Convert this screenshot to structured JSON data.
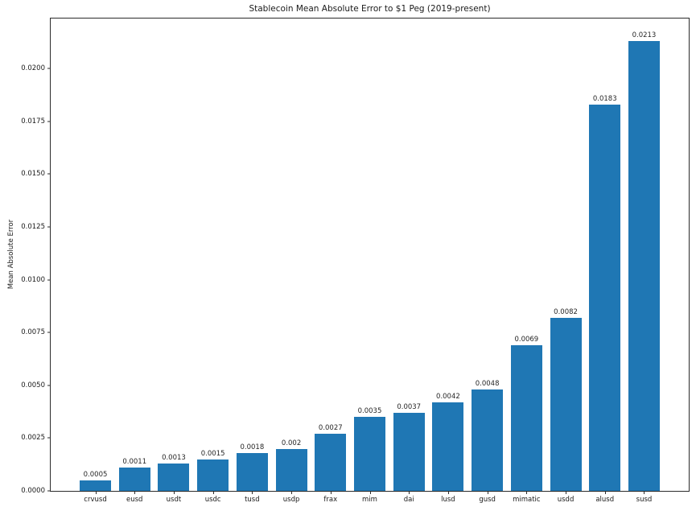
{
  "chart_data": {
    "type": "bar",
    "title": "Stablecoin Mean Absolute Error to $1 Peg (2019-present)",
    "xlabel": "",
    "ylabel": "Mean Absolute Error",
    "categories": [
      "crvusd",
      "eusd",
      "usdt",
      "usdc",
      "tusd",
      "usdp",
      "frax",
      "mim",
      "dai",
      "lusd",
      "gusd",
      "mimatic",
      "usdd",
      "alusd",
      "susd"
    ],
    "values": [
      0.0005,
      0.0011,
      0.0013,
      0.0015,
      0.0018,
      0.002,
      0.0027,
      0.0035,
      0.0037,
      0.0042,
      0.0048,
      0.0069,
      0.0082,
      0.0183,
      0.0213
    ],
    "value_labels": [
      "0.0005",
      "0.0011",
      "0.0013",
      "0.0015",
      "0.0018",
      "0.002",
      "0.0027",
      "0.0035",
      "0.0037",
      "0.0042",
      "0.0048",
      "0.0069",
      "0.0082",
      "0.0183",
      "0.0213"
    ],
    "yticks": {
      "values": [
        0.0,
        0.0025,
        0.005,
        0.0075,
        0.01,
        0.0125,
        0.015,
        0.0175,
        0.02
      ],
      "labels": [
        "0.0000",
        "0.0025",
        "0.0050",
        "0.0075",
        "0.0100",
        "0.0125",
        "0.0150",
        "0.0175",
        "0.0200"
      ]
    },
    "ylim": [
      0,
      0.022365
    ],
    "bar_color": "#1f77b4",
    "grid": false,
    "legend": "none"
  }
}
